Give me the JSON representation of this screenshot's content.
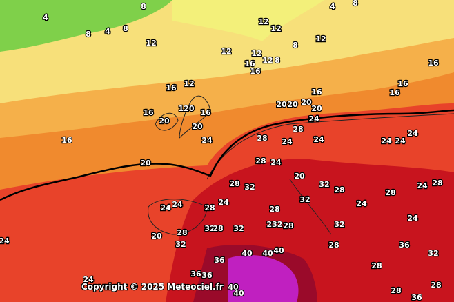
{
  "map": {
    "labels": [
      8,
      4,
      8,
      4,
      8,
      12,
      12,
      12,
      12,
      8,
      12,
      12,
      12,
      8,
      16,
      16,
      4,
      8,
      16,
      16,
      12,
      16,
      20,
      120,
      16,
      20,
      24,
      16,
      20,
      16,
      16,
      16,
      20,
      20,
      20,
      20,
      24,
      28,
      28,
      24,
      24,
      24,
      24,
      24,
      28,
      24,
      28,
      32,
      20,
      32,
      28,
      28,
      24,
      24,
      24,
      28,
      24,
      28,
      32,
      20,
      28,
      32,
      28,
      32,
      32,
      232,
      28,
      32,
      28,
      36,
      40,
      40,
      40,
      36,
      36,
      40,
      40,
      24,
      24,
      28,
      28,
      36,
      24,
      28,
      24,
      32,
      36,
      28
    ],
    "copyright": "Copyright © 2025 Meteociel.fr"
  }
}
